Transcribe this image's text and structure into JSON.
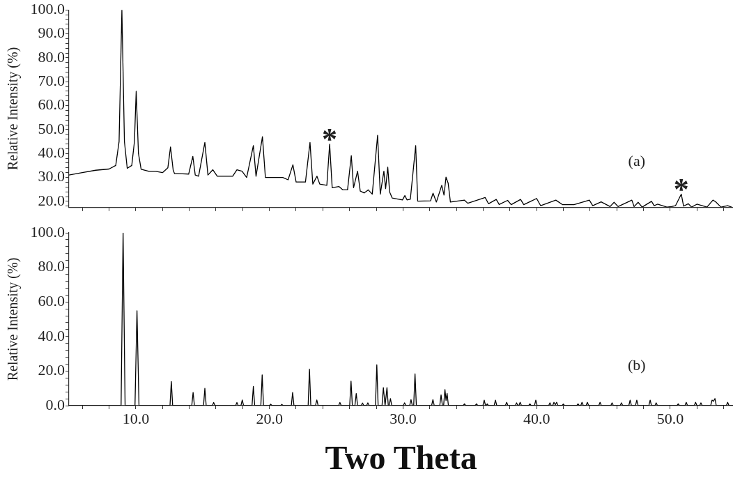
{
  "chart_data": [
    {
      "type": "line",
      "ylabel": "Relative Intensity (%)",
      "xlim": [
        5,
        54.7
      ],
      "ylim": [
        17.4,
        100
      ],
      "tick_labels": "y",
      "xticks": [
        {
          "value": 6,
          "label": null
        },
        {
          "value": 8,
          "label": null
        },
        {
          "value": 10,
          "label": null
        },
        {
          "value": 12,
          "label": null
        },
        {
          "value": 14,
          "label": null
        },
        {
          "value": 16,
          "label": null
        },
        {
          "value": 18,
          "label": null
        },
        {
          "value": 20,
          "label": null
        },
        {
          "value": 22,
          "label": null
        },
        {
          "value": 24,
          "label": null
        },
        {
          "value": 26,
          "label": null
        },
        {
          "value": 28,
          "label": null
        },
        {
          "value": 30,
          "label": null
        },
        {
          "value": 32,
          "label": null
        },
        {
          "value": 34,
          "label": null
        },
        {
          "value": 36,
          "label": null
        },
        {
          "value": 38,
          "label": null
        },
        {
          "value": 40,
          "label": null
        },
        {
          "value": 42,
          "label": null
        },
        {
          "value": 44,
          "label": null
        },
        {
          "value": 46,
          "label": null
        },
        {
          "value": 48,
          "label": null
        },
        {
          "value": 50,
          "label": null
        },
        {
          "value": 52,
          "label": null
        },
        {
          "value": 54,
          "label": null
        }
      ],
      "yticks": [
        {
          "value": 18,
          "label": null
        },
        {
          "value": 20,
          "label": "20.0"
        },
        {
          "value": 22,
          "label": null
        },
        {
          "value": 24,
          "label": null
        },
        {
          "value": 26,
          "label": null
        },
        {
          "value": 28,
          "label": null
        },
        {
          "value": 30,
          "label": "30.0"
        },
        {
          "value": 32,
          "label": null
        },
        {
          "value": 34,
          "label": null
        },
        {
          "value": 36,
          "label": null
        },
        {
          "value": 38,
          "label": null
        },
        {
          "value": 40,
          "label": "40.0"
        },
        {
          "value": 42,
          "label": null
        },
        {
          "value": 44,
          "label": null
        },
        {
          "value": 46,
          "label": null
        },
        {
          "value": 48,
          "label": null
        },
        {
          "value": 50,
          "label": "50.0"
        },
        {
          "value": 52,
          "label": null
        },
        {
          "value": 54,
          "label": null
        },
        {
          "value": 56,
          "label": null
        },
        {
          "value": 58,
          "label": null
        },
        {
          "value": 60,
          "label": "60.0"
        },
        {
          "value": 62,
          "label": null
        },
        {
          "value": 64,
          "label": null
        },
        {
          "value": 66,
          "label": null
        },
        {
          "value": 68,
          "label": null
        },
        {
          "value": 70,
          "label": "70.0"
        },
        {
          "value": 72,
          "label": null
        },
        {
          "value": 74,
          "label": null
        },
        {
          "value": 76,
          "label": null
        },
        {
          "value": 78,
          "label": null
        },
        {
          "value": 80,
          "label": "80.0"
        },
        {
          "value": 82,
          "label": null
        },
        {
          "value": 84,
          "label": null
        },
        {
          "value": 86,
          "label": null
        },
        {
          "value": 88,
          "label": null
        },
        {
          "value": 90,
          "label": "90.0"
        },
        {
          "value": 92,
          "label": null
        },
        {
          "value": 94,
          "label": null
        },
        {
          "value": 96,
          "label": null
        },
        {
          "value": 98,
          "label": null
        },
        {
          "value": 100,
          "label": "100.0"
        }
      ],
      "annotations": [
        "(a)",
        {
          "text": "*",
          "x": 24.51,
          "y": 43.9
        },
        {
          "text": "*",
          "x": 50.83,
          "y": 23.0
        }
      ],
      "series": [
        {
          "color": "#000000",
          "x": [
            5.0,
            6.0,
            7.0,
            8.0,
            8.5,
            8.75,
            8.96,
            9.15,
            9.36,
            9.7,
            9.9,
            10.03,
            10.2,
            10.4,
            11.0,
            11.5,
            12.0,
            12.4,
            12.6,
            12.8,
            12.9,
            13.5,
            13.96,
            14.27,
            14.45,
            14.7,
            15.17,
            15.4,
            15.77,
            16.1,
            17.25,
            17.57,
            17.95,
            18.3,
            18.8,
            19.0,
            19.48,
            19.7,
            21.0,
            21.4,
            21.76,
            22.0,
            22.7,
            23.04,
            23.25,
            23.56,
            23.77,
            24.3,
            24.51,
            24.7,
            25.2,
            25.5,
            25.85,
            26.13,
            26.3,
            26.6,
            26.8,
            27.1,
            27.4,
            27.7,
            28.1,
            28.3,
            28.57,
            28.7,
            28.86,
            29.0,
            29.19,
            29.96,
            30.14,
            30.3,
            30.55,
            30.95,
            31.1,
            32.06,
            32.25,
            32.5,
            32.9,
            33.07,
            33.22,
            33.38,
            33.55,
            34.6,
            34.85,
            36.15,
            36.4,
            36.98,
            37.2,
            37.83,
            38.1,
            38.8,
            39.04,
            40.0,
            40.3,
            41.44,
            41.95,
            42.8,
            43.95,
            44.2,
            44.83,
            45.5,
            45.8,
            46.1,
            47.13,
            47.3,
            47.6,
            47.9,
            48.6,
            48.8,
            49.05,
            49.75,
            50.1,
            50.4,
            50.83,
            51.0,
            51.35,
            51.6,
            52.0,
            52.4,
            52.75,
            53.2,
            53.4,
            53.8,
            54.3,
            54.6
          ],
          "values": [
            31.0,
            32.0,
            33.0,
            33.5,
            35,
            45,
            100,
            45,
            33.8,
            35,
            45,
            66,
            40,
            33.4,
            32.5,
            32.5,
            32,
            34,
            42.7,
            33,
            31.6,
            31.5,
            31.4,
            38.8,
            31,
            30.5,
            44.6,
            31,
            33.2,
            30.5,
            30.5,
            33.2,
            32.6,
            30,
            43.3,
            30.5,
            47,
            30,
            30,
            29,
            35.3,
            28.1,
            28.1,
            44.6,
            27.2,
            30.5,
            27.2,
            26.7,
            43.9,
            25.7,
            26.2,
            24.8,
            24.8,
            39.1,
            25.7,
            32.6,
            24.3,
            23.5,
            24.8,
            23,
            47.6,
            23,
            32.6,
            25.3,
            34.3,
            23.9,
            21.4,
            20.6,
            22.4,
            20.6,
            20.9,
            43.3,
            20.1,
            20.2,
            23.4,
            19.7,
            26.7,
            22.6,
            30.1,
            27.6,
            19.7,
            20.5,
            19.2,
            21.6,
            19,
            20.8,
            18.7,
            20.4,
            18.6,
            20.8,
            18.6,
            21.2,
            18.2,
            20.5,
            18.6,
            18.6,
            20.5,
            18.2,
            19.8,
            17.8,
            19.6,
            17.8,
            20.5,
            17.8,
            19.6,
            17.6,
            20,
            18.2,
            18.8,
            17.6,
            17.8,
            18.2,
            23.0,
            18,
            19,
            17.6,
            18.8,
            18.2,
            17.6,
            20.5,
            19.8,
            17.6,
            18.2,
            17.6
          ]
        }
      ]
    },
    {
      "type": "line",
      "ylabel": "Relative Intensity (%)",
      "xlabel": "Two Theta",
      "xlim": [
        5,
        54.7
      ],
      "ylim": [
        0,
        100
      ],
      "xticks": [
        {
          "value": 6,
          "label": null
        },
        {
          "value": 8,
          "label": null
        },
        {
          "value": 10,
          "label": "10.0"
        },
        {
          "value": 12,
          "label": null
        },
        {
          "value": 14,
          "label": null
        },
        {
          "value": 16,
          "label": null
        },
        {
          "value": 18,
          "label": null
        },
        {
          "value": 20,
          "label": "20.0"
        },
        {
          "value": 22,
          "label": null
        },
        {
          "value": 24,
          "label": null
        },
        {
          "value": 26,
          "label": null
        },
        {
          "value": 28,
          "label": null
        },
        {
          "value": 30,
          "label": "30.0"
        },
        {
          "value": 32,
          "label": null
        },
        {
          "value": 34,
          "label": null
        },
        {
          "value": 36,
          "label": null
        },
        {
          "value": 38,
          "label": null
        },
        {
          "value": 40,
          "label": "40.0"
        },
        {
          "value": 42,
          "label": null
        },
        {
          "value": 44,
          "label": null
        },
        {
          "value": 46,
          "label": null
        },
        {
          "value": 48,
          "label": null
        },
        {
          "value": 50,
          "label": "50.0"
        },
        {
          "value": 52,
          "label": null
        },
        {
          "value": 54,
          "label": null
        }
      ],
      "yticks": [
        {
          "value": 0,
          "label": "0.0"
        },
        {
          "value": 4,
          "label": null
        },
        {
          "value": 8,
          "label": null
        },
        {
          "value": 12,
          "label": null
        },
        {
          "value": 16,
          "label": null
        },
        {
          "value": 20,
          "label": "20.0"
        },
        {
          "value": 24,
          "label": null
        },
        {
          "value": 28,
          "label": null
        },
        {
          "value": 32,
          "label": null
        },
        {
          "value": 36,
          "label": null
        },
        {
          "value": 40,
          "label": "40.0"
        },
        {
          "value": 44,
          "label": null
        },
        {
          "value": 48,
          "label": null
        },
        {
          "value": 52,
          "label": null
        },
        {
          "value": 56,
          "label": null
        },
        {
          "value": 60,
          "label": "60.0"
        },
        {
          "value": 64,
          "label": null
        },
        {
          "value": 68,
          "label": null
        },
        {
          "value": 72,
          "label": null
        },
        {
          "value": 76,
          "label": null
        },
        {
          "value": 80,
          "label": "80.0"
        },
        {
          "value": 84,
          "label": null
        },
        {
          "value": 88,
          "label": null
        },
        {
          "value": 92,
          "label": null
        },
        {
          "value": 96,
          "label": null
        },
        {
          "value": 100,
          "label": "100.0"
        }
      ],
      "annotations": [
        "(b)"
      ],
      "series": [
        {
          "color": "#000000",
          "x": [
            5,
            8.9,
            9.05,
            9.2,
            9.94,
            10.09,
            10.24,
            12.56,
            12.66,
            12.76,
            14.19,
            14.29,
            14.39,
            15.07,
            15.17,
            15.27,
            15.73,
            15.83,
            15.93,
            17.47,
            17.57,
            17.67,
            17.87,
            17.97,
            18.07,
            18.7,
            18.8,
            18.9,
            19.36,
            19.46,
            19.56,
            20.0,
            20.1,
            20.2,
            20.83,
            20.93,
            21.03,
            21.64,
            21.74,
            21.84,
            22.9,
            23.0,
            23.1,
            23.45,
            23.55,
            23.65,
            25.18,
            25.28,
            25.38,
            26.01,
            26.11,
            26.21,
            26.4,
            26.5,
            26.6,
            26.87,
            26.97,
            27.07,
            27.27,
            27.37,
            27.47,
            27.94,
            28.04,
            28.14,
            28.43,
            28.53,
            28.66,
            28.8,
            28.9,
            28.96,
            29.06,
            29.16,
            30.02,
            30.12,
            30.22,
            30.5,
            30.6,
            30.7,
            30.8,
            30.9,
            31.0,
            32.14,
            32.24,
            32.34,
            32.75,
            32.85,
            32.95,
            33.04,
            33.14,
            33.22,
            33.3,
            33.4,
            34.5,
            34.6,
            34.7,
            35.4,
            35.5,
            35.6,
            35.98,
            36.08,
            36.18,
            36.22,
            36.3,
            36.4,
            36.82,
            36.92,
            37.02,
            37.66,
            37.76,
            37.86,
            38.4,
            38.5,
            38.6,
            38.67,
            38.77,
            38.87,
            39.4,
            39.5,
            39.6,
            39.84,
            39.94,
            40.04,
            40.9,
            41.0,
            41.1,
            41.2,
            41.3,
            41.4,
            41.5,
            41.6,
            41.9,
            42.0,
            42.1,
            43.0,
            43.1,
            43.2,
            43.3,
            43.4,
            43.5,
            43.7,
            43.8,
            43.9,
            44.65,
            44.75,
            44.85,
            45.55,
            45.65,
            45.75,
            46.25,
            46.35,
            46.45,
            46.9,
            47.0,
            47.1,
            47.4,
            47.5,
            47.6,
            48.4,
            48.5,
            48.6,
            48.85,
            48.95,
            49.05,
            50.5,
            50.6,
            50.7,
            51.1,
            51.2,
            51.3,
            51.8,
            51.9,
            52.0,
            52.2,
            52.3,
            52.4,
            53.03,
            53.13,
            53.24,
            53.35,
            53.45,
            54.2,
            54.3,
            54.4,
            54.7
          ],
          "values": [
            0,
            0,
            100,
            0,
            0,
            54.9,
            0,
            0,
            14,
            0,
            0,
            7.6,
            0,
            0,
            10,
            0,
            0,
            1.8,
            0,
            0,
            1.8,
            0,
            0,
            3.3,
            0,
            0,
            11.1,
            0,
            0,
            17.8,
            0,
            0,
            0.8,
            0,
            0,
            0.7,
            0,
            0,
            7.6,
            0,
            0,
            21.1,
            0,
            0,
            3.3,
            0,
            0,
            1.8,
            0,
            0,
            14.2,
            0,
            0,
            7,
            0,
            0,
            1.5,
            0,
            0,
            1.6,
            0,
            0,
            23.6,
            0,
            0,
            10.4,
            0,
            10.4,
            0,
            0,
            4.1,
            0,
            0,
            1.6,
            0,
            0,
            3.5,
            0,
            0,
            18.4,
            0,
            0,
            3.5,
            0,
            0,
            6.2,
            0,
            0,
            9.3,
            3,
            7.1,
            0,
            0,
            1,
            0,
            0,
            1,
            0,
            0,
            3.2,
            0,
            0,
            1,
            0,
            0,
            3.2,
            0,
            0,
            1.9,
            0,
            0,
            1.6,
            0,
            0,
            1.9,
            0,
            0,
            1,
            0,
            0,
            3.2,
            0,
            0,
            1.6,
            0,
            0,
            1.9,
            0.5,
            1.9,
            0,
            0,
            0.9,
            0,
            0,
            1,
            0,
            0,
            1.9,
            0,
            0,
            1.9,
            0,
            0,
            1.9,
            0,
            0,
            1.6,
            0,
            0,
            1.6,
            0,
            0,
            3.2,
            0,
            0,
            3.2,
            0,
            0,
            3.2,
            0,
            0,
            1.6,
            0,
            0,
            1,
            0,
            0,
            1.9,
            0,
            0,
            1.9,
            0,
            0,
            1.6,
            0,
            0,
            3.2,
            2.5,
            4.1,
            0,
            0,
            1.9,
            0,
            0
          ]
        }
      ]
    }
  ]
}
